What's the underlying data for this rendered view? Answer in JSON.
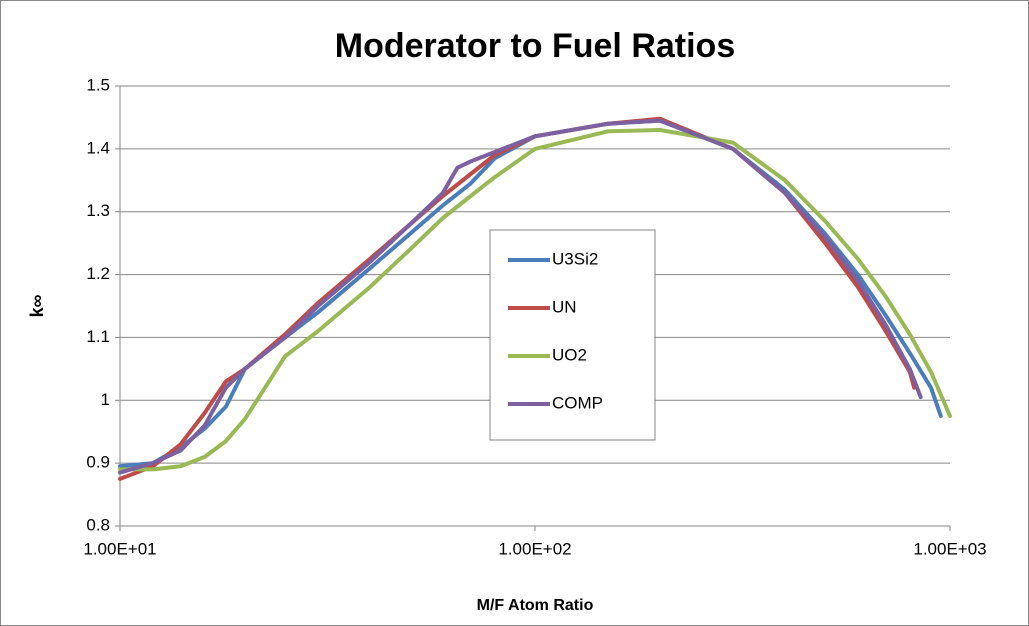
{
  "chart_data": {
    "type": "line",
    "title": "Moderator to Fuel Ratios",
    "xlabel": "M/F Atom Ratio",
    "ylabel": "k∞",
    "xscale": "log",
    "xlim": [
      10,
      1000
    ],
    "xticks": [
      {
        "value": 10,
        "label": "1.00E+01"
      },
      {
        "value": 100,
        "label": "1.00E+02"
      },
      {
        "value": 1000,
        "label": "1.00E+03"
      }
    ],
    "ylim": [
      0.8,
      1.5
    ],
    "yticks": [
      0.8,
      0.9,
      1,
      1.1,
      1.2,
      1.3,
      1.4,
      1.5
    ],
    "grid": true,
    "legend": "center",
    "series": [
      {
        "name": "U3Si2",
        "color": "#4a7ebb",
        "x": [
          10,
          12,
          14,
          16,
          18,
          20,
          25,
          30,
          40,
          50,
          60,
          70,
          80,
          100,
          150,
          200,
          300,
          400,
          500,
          600,
          700,
          800,
          900,
          950
        ],
        "values": [
          0.895,
          0.9,
          0.925,
          0.955,
          0.99,
          1.05,
          1.1,
          1.14,
          1.21,
          1.265,
          1.31,
          1.345,
          1.385,
          1.42,
          1.44,
          1.445,
          1.4,
          1.335,
          1.265,
          1.2,
          1.135,
          1.075,
          1.02,
          0.975
        ]
      },
      {
        "name": "UN",
        "color": "#be4b48",
        "x": [
          10,
          12,
          14,
          16,
          18,
          20,
          25,
          30,
          40,
          50,
          60,
          70,
          80,
          100,
          150,
          200,
          300,
          400,
          500,
          600,
          700,
          800,
          820
        ],
        "values": [
          0.875,
          0.895,
          0.93,
          0.98,
          1.03,
          1.05,
          1.105,
          1.155,
          1.225,
          1.28,
          1.325,
          1.36,
          1.39,
          1.42,
          1.44,
          1.448,
          1.4,
          1.33,
          1.25,
          1.18,
          1.11,
          1.045,
          1.02
        ]
      },
      {
        "name": "UO2",
        "color": "#98b954",
        "x": [
          10,
          12,
          14,
          16,
          18,
          20,
          25,
          30,
          40,
          50,
          60,
          70,
          80,
          100,
          150,
          200,
          300,
          400,
          500,
          600,
          700,
          800,
          900,
          1000
        ],
        "values": [
          0.89,
          0.89,
          0.895,
          0.91,
          0.935,
          0.97,
          1.07,
          1.11,
          1.18,
          1.24,
          1.29,
          1.325,
          1.355,
          1.4,
          1.428,
          1.43,
          1.41,
          1.35,
          1.285,
          1.225,
          1.165,
          1.105,
          1.045,
          0.975
        ]
      },
      {
        "name": "COMP",
        "color": "#7d60a0",
        "x": [
          10,
          12,
          14,
          16,
          18,
          20,
          25,
          30,
          40,
          50,
          60,
          65,
          70,
          80,
          100,
          150,
          200,
          300,
          400,
          500,
          600,
          700,
          800,
          850
        ],
        "values": [
          0.885,
          0.9,
          0.92,
          0.96,
          1.02,
          1.05,
          1.1,
          1.15,
          1.22,
          1.28,
          1.33,
          1.37,
          1.38,
          1.395,
          1.42,
          1.44,
          1.445,
          1.4,
          1.33,
          1.26,
          1.19,
          1.12,
          1.05,
          1.005
        ]
      }
    ]
  }
}
